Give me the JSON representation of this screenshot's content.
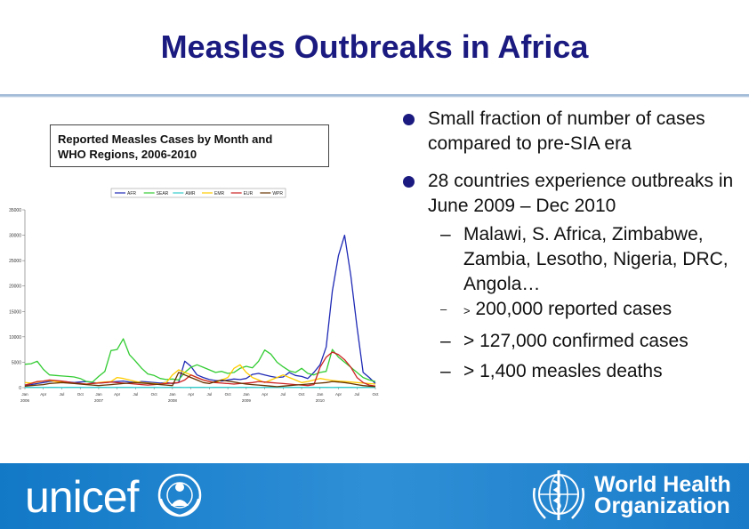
{
  "slide": {
    "title": "Measles Outbreaks in Africa"
  },
  "chart_caption": {
    "line1": "Reported Measles Cases by Month and",
    "line2": "WHO Regions, 2006-2010"
  },
  "bullets": [
    {
      "text": "Small fraction of number of cases compared to pre-SIA era"
    },
    {
      "text": "28 countries experience outbreaks in June 2009 – Dec 2010"
    }
  ],
  "sub_bullets": {
    "countries": "Malawi, S. Africa, Zimbabwe, Zambia, Lesotho, Nigeria, DRC, Angola…",
    "reported_prefix": ">",
    "reported": "200,000 reported cases",
    "confirmed": "> 127,000 confirmed cases",
    "deaths": "> 1,400 measles deaths",
    "dash": "–"
  },
  "footer": {
    "unicef": "unicef",
    "who_line1": "World Health",
    "who_line2": "Organization"
  },
  "chart_data": {
    "type": "line",
    "ylim": [
      0,
      35000
    ],
    "yticks": [
      0,
      5000,
      10000,
      15000,
      20000,
      25000,
      30000,
      35000
    ],
    "ytick_labels": [
      "0",
      "5000",
      "10000",
      "15000",
      "20000",
      "25000",
      "30000",
      "35000"
    ],
    "xtick_labels": [
      "Jan",
      "Apr",
      "Jul",
      "Oct",
      "Jan",
      "Apr",
      "Jul",
      "Oct",
      "Jan",
      "Apr",
      "Jul",
      "Oct",
      "Jan",
      "Apr",
      "Jul",
      "Oct",
      "Jan",
      "Apr",
      "Jul",
      "Oct"
    ],
    "xtick_months": [
      0,
      3,
      6,
      9,
      12,
      15,
      18,
      21,
      24,
      27,
      30,
      33,
      36,
      39,
      42,
      45,
      48,
      51,
      54,
      57
    ],
    "year_labels": [
      "2006",
      "2007",
      "2008",
      "2009",
      "2010"
    ],
    "year_months": [
      0,
      12,
      24,
      36,
      48
    ],
    "grid": false,
    "legend_position": "top",
    "series": [
      {
        "name": "AFR",
        "color": "#1f2ab5",
        "values": [
          500,
          600,
          800,
          1000,
          1200,
          1300,
          1200,
          1100,
          1000,
          1100,
          1200,
          1000,
          900,
          1000,
          1100,
          1200,
          1300,
          1100,
          1000,
          1200,
          1100,
          1000,
          900,
          1000,
          800,
          1000,
          5200,
          4200,
          2500,
          2000,
          1600,
          1400,
          1300,
          1500,
          1700,
          1600,
          1800,
          2600,
          2800,
          2500,
          2200,
          2000,
          2100,
          3000,
          2400,
          2200,
          1800,
          3000,
          4500,
          8000,
          19000,
          26000,
          30000,
          22000,
          12000,
          3000,
          2000,
          800
        ]
      },
      {
        "name": "SEAR",
        "color": "#33cc33",
        "values": [
          4600,
          4700,
          5200,
          3600,
          2500,
          2400,
          2300,
          2200,
          2100,
          1800,
          1200,
          1100,
          2200,
          3200,
          7300,
          7500,
          9600,
          6500,
          5200,
          3800,
          2700,
          2400,
          1800,
          1600,
          1700,
          1500,
          3000,
          4000,
          4500,
          4000,
          3500,
          3000,
          3200,
          2800,
          3000,
          3800,
          4200,
          3900,
          5200,
          7400,
          6600,
          5000,
          4100,
          3300,
          3000,
          3800,
          2800,
          2500,
          3000,
          3200,
          7500,
          6000,
          5000,
          4000,
          3000,
          2000,
          1500,
          1200
        ]
      },
      {
        "name": "AMR",
        "color": "#33cccc",
        "values": [
          50,
          60,
          50,
          40,
          60,
          50,
          40,
          50,
          60,
          50,
          40,
          50,
          60,
          50,
          40,
          50,
          60,
          50,
          40,
          50,
          60,
          50,
          40,
          50,
          60,
          50,
          40,
          50,
          60,
          50,
          40,
          50,
          60,
          50,
          40,
          50,
          60,
          50,
          40,
          50,
          60,
          50,
          40,
          50,
          60,
          50,
          40,
          50,
          60,
          50,
          40,
          50,
          60,
          50,
          40,
          50,
          60,
          50
        ]
      },
      {
        "name": "EMR",
        "color": "#ffcc00",
        "values": [
          1000,
          900,
          1100,
          1300,
          1400,
          1200,
          1100,
          1000,
          900,
          800,
          700,
          800,
          1000,
          1100,
          1200,
          2000,
          1800,
          1500,
          1200,
          1000,
          900,
          800,
          700,
          1000,
          2500,
          3500,
          3000,
          2500,
          2000,
          1500,
          1200,
          1000,
          1500,
          2000,
          3800,
          4500,
          3000,
          2000,
          1500,
          1000,
          1500,
          2000,
          2500,
          2000,
          1500,
          1000,
          1200,
          1500,
          1800,
          1600,
          1400,
          1300,
          1200,
          1100,
          1000,
          900,
          800,
          700
        ]
      },
      {
        "name": "EUR",
        "color": "#cc2222",
        "values": [
          500,
          800,
          1200,
          1300,
          1500,
          1400,
          1300,
          1100,
          900,
          800,
          700,
          800,
          900,
          1000,
          1100,
          1000,
          900,
          800,
          700,
          600,
          500,
          600,
          700,
          800,
          900,
          1000,
          1500,
          2500,
          2000,
          1500,
          1200,
          1000,
          900,
          800,
          700,
          800,
          900,
          1000,
          1200,
          1100,
          1000,
          900,
          800,
          700,
          600,
          500,
          400,
          600,
          4000,
          6000,
          7000,
          6500,
          5500,
          4000,
          2000,
          1000,
          500,
          300
        ]
      },
      {
        "name": "WPR",
        "color": "#663300",
        "values": [
          300,
          400,
          500,
          600,
          800,
          900,
          1000,
          900,
          800,
          700,
          600,
          500,
          400,
          500,
          600,
          700,
          800,
          900,
          1000,
          900,
          800,
          700,
          600,
          500,
          400,
          3000,
          2500,
          2000,
          1500,
          1000,
          800,
          1200,
          1500,
          1300,
          1100,
          900,
          700,
          600,
          500,
          400,
          300,
          200,
          300,
          400,
          500,
          600,
          700,
          800,
          900,
          1000,
          1200,
          1100,
          1000,
          800,
          600,
          400,
          300,
          200
        ]
      }
    ]
  }
}
